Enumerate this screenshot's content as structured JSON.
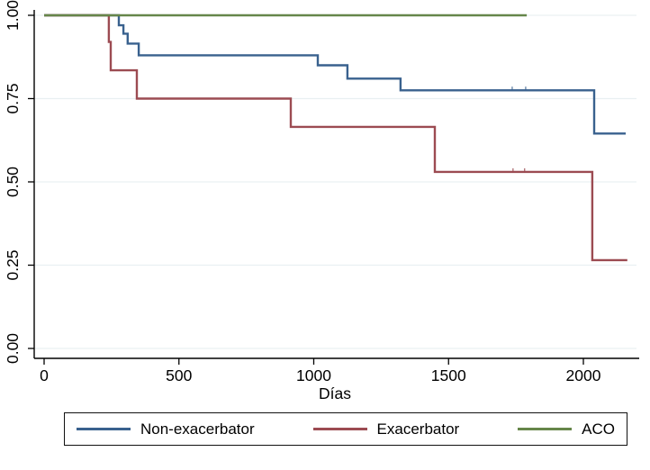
{
  "chart_data": {
    "type": "line",
    "subtype": "kaplan-meier-step",
    "title": "",
    "xlabel": "Días",
    "ylabel": "",
    "xlim": [
      0,
      2200
    ],
    "ylim": [
      0.0,
      1.0
    ],
    "grid": true,
    "legend_position": "bottom",
    "x_ticks": [
      {
        "value": 0,
        "label": "0"
      },
      {
        "value": 500,
        "label": "500"
      },
      {
        "value": 1000,
        "label": "1000"
      },
      {
        "value": 1500,
        "label": "1500"
      },
      {
        "value": 2000,
        "label": "2000"
      }
    ],
    "y_ticks": [
      {
        "value": 0.0,
        "label": "0.00"
      },
      {
        "value": 0.25,
        "label": "0.25"
      },
      {
        "value": 0.5,
        "label": "0.50"
      },
      {
        "value": 0.75,
        "label": "0.75"
      },
      {
        "value": 1.0,
        "label": "1.00"
      }
    ],
    "series": [
      {
        "name": "Non-exacerbator",
        "color": "#39618e",
        "end_x": 2157,
        "points": [
          [
            0,
            1.0
          ],
          [
            277,
            0.97
          ],
          [
            294,
            0.945
          ],
          [
            310,
            0.915
          ],
          [
            351,
            0.88
          ],
          [
            1015,
            0.85
          ],
          [
            1125,
            0.81
          ],
          [
            1322,
            0.775
          ],
          [
            2040,
            0.645
          ]
        ],
        "censor_marks": [
          [
            1736,
            0.775
          ],
          [
            1786,
            0.775
          ]
        ]
      },
      {
        "name": "Exacerbator",
        "color": "#9c4b52",
        "end_x": 2163,
        "points": [
          [
            0,
            1.0
          ],
          [
            240,
            0.92
          ],
          [
            247,
            0.835
          ],
          [
            344,
            0.75
          ],
          [
            915,
            0.665
          ],
          [
            1449,
            0.53
          ],
          [
            2033,
            0.265
          ]
        ],
        "censor_marks": [
          [
            1739,
            0.53
          ],
          [
            1782,
            0.53
          ]
        ]
      },
      {
        "name": "ACO",
        "color": "#66864a",
        "end_x": 1790,
        "points": [
          [
            0,
            1.0
          ]
        ],
        "censor_marks": []
      }
    ]
  },
  "legend": {
    "entries": [
      {
        "label": "Non-exacerbator",
        "color": "#39618e"
      },
      {
        "label": "Exacerbator",
        "color": "#9c4b52"
      },
      {
        "label": "ACO",
        "color": "#66864a"
      }
    ]
  },
  "colors": {
    "grid": "#e9f0f2",
    "axis": "#000000",
    "background": "#ffffff"
  }
}
